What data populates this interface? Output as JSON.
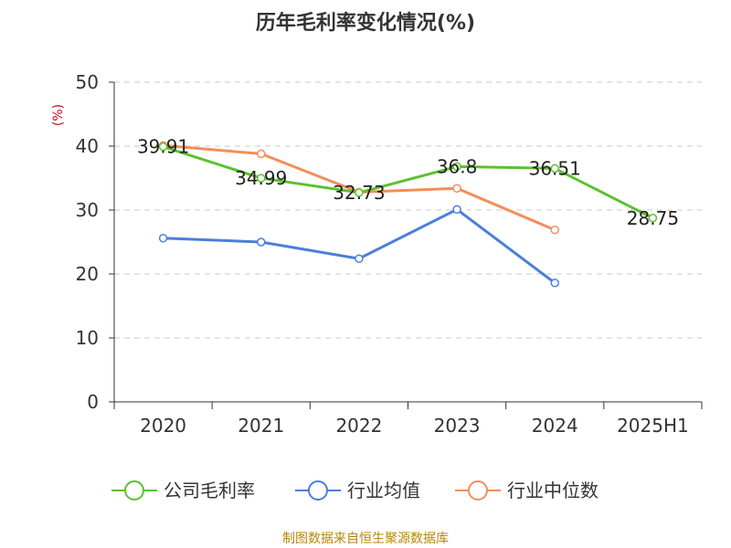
{
  "chart_data": {
    "type": "line",
    "title": "历年毛利率变化情况(%)",
    "ylabel": "(%)",
    "xlabel": "",
    "categories": [
      "2020",
      "2021",
      "2022",
      "2023",
      "2024",
      "2025H1"
    ],
    "ylim": [
      0,
      50
    ],
    "yticks": [
      0,
      10,
      20,
      30,
      40,
      50
    ],
    "grid": true,
    "legend_position": "bottom",
    "series": [
      {
        "name": "公司毛利率",
        "color": "#5cc12f",
        "values": [
          39.91,
          34.99,
          32.73,
          36.8,
          36.51,
          28.75
        ],
        "labels": [
          "39.91",
          "34.99",
          "32.73",
          "36.8",
          "36.51",
          "28.75"
        ]
      },
      {
        "name": "行业均值",
        "color": "#4a7fdb",
        "values": [
          25.6,
          25.0,
          22.4,
          30.1,
          18.6,
          null
        ]
      },
      {
        "name": "行业中位数",
        "color": "#f28e5a",
        "values": [
          40.1,
          38.8,
          32.8,
          33.4,
          26.9,
          null
        ]
      }
    ]
  },
  "source": "制图数据来自恒生聚源数据库"
}
